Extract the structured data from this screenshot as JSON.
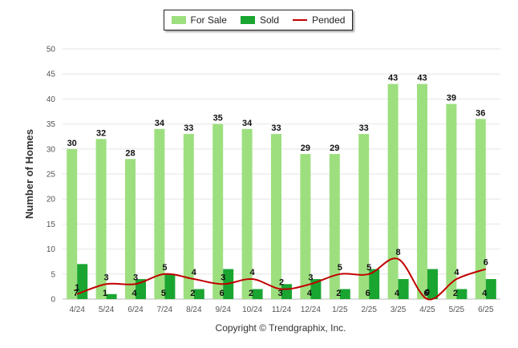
{
  "legend": {
    "items": [
      {
        "label": "For Sale",
        "color": "#9ddf7f",
        "kind": "bar"
      },
      {
        "label": "Sold",
        "color": "#1aa531",
        "kind": "bar"
      },
      {
        "label": "Pended",
        "color": "#c00000",
        "kind": "line"
      }
    ]
  },
  "credit": "Copyright © Trendgraphix, Inc.",
  "chart_data": {
    "type": "bar",
    "categories": [
      "4/24",
      "5/24",
      "6/24",
      "7/24",
      "8/24",
      "9/24",
      "10/24",
      "11/24",
      "12/24",
      "1/25",
      "2/25",
      "3/25",
      "4/25",
      "5/25",
      "6/25"
    ],
    "ylabel": "Number of Homes",
    "xlabel": "",
    "ylim": [
      0,
      50
    ],
    "yticks": [
      0,
      5,
      10,
      15,
      20,
      25,
      30,
      35,
      40,
      45,
      50
    ],
    "grid": true,
    "legend_position": "top-center",
    "series": [
      {
        "name": "For Sale",
        "kind": "bar",
        "color": "#9ddf7f",
        "values": [
          30,
          32,
          28,
          34,
          33,
          35,
          34,
          33,
          29,
          29,
          33,
          43,
          43,
          39,
          36
        ]
      },
      {
        "name": "Sold",
        "kind": "bar",
        "color": "#1aa531",
        "values": [
          7,
          1,
          4,
          5,
          2,
          6,
          2,
          3,
          4,
          2,
          6,
          4,
          6,
          2,
          4
        ]
      },
      {
        "name": "Pended",
        "kind": "line",
        "color": "#c00000",
        "values": [
          1,
          3,
          3,
          5,
          4,
          3,
          4,
          2,
          3,
          5,
          5,
          8,
          0,
          4,
          6
        ]
      }
    ]
  }
}
